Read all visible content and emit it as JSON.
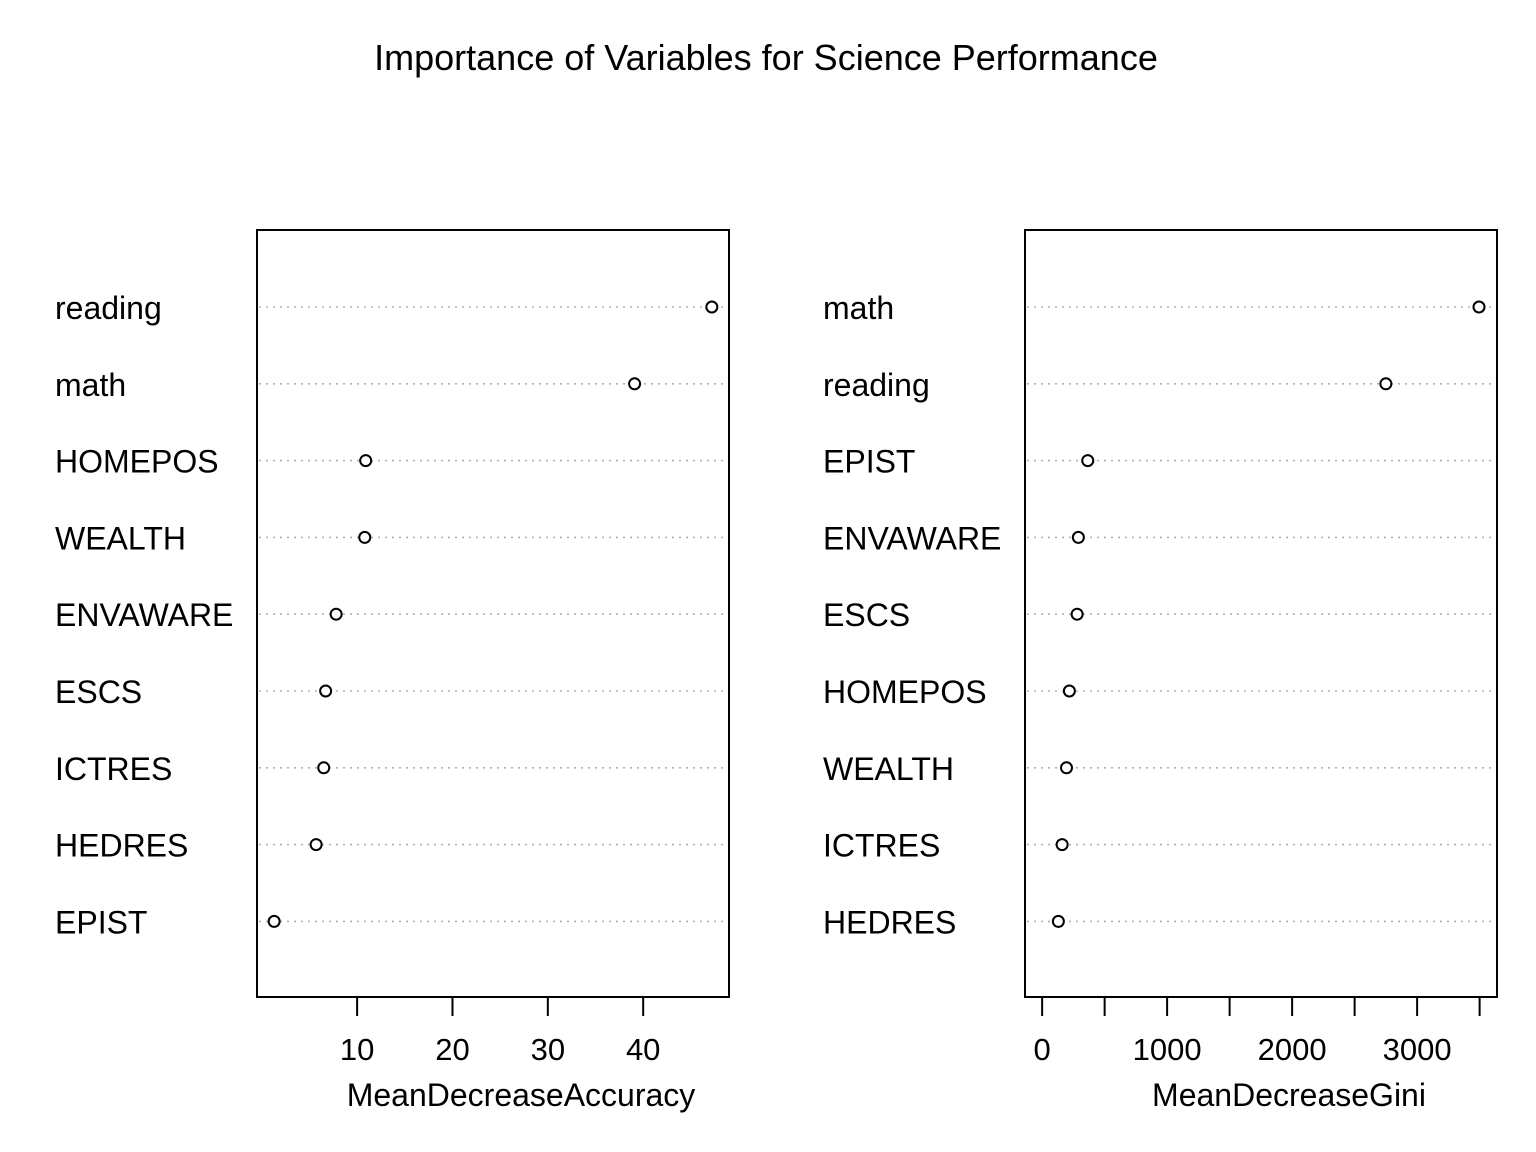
{
  "title": "Importance of Variables for Science Performance",
  "chart_data": [
    {
      "type": "scatter",
      "panel": "left",
      "variables": [
        "reading",
        "math",
        "HOMEPOS",
        "WEALTH",
        "ENVAWARE",
        "ESCS",
        "ICTRES",
        "HEDRES",
        "EPIST"
      ],
      "values": [
        47.2,
        39.1,
        10.9,
        10.8,
        7.8,
        6.7,
        6.5,
        5.7,
        1.3
      ],
      "xlabel": "MeanDecreaseAccuracy",
      "xticks": [
        10,
        20,
        30,
        40
      ],
      "xticks_labels": [
        "10",
        "20",
        "30",
        "40"
      ],
      "xlim": [
        -0.5,
        49.0
      ],
      "grid": "dotted horizontal"
    },
    {
      "type": "scatter",
      "panel": "right",
      "variables": [
        "math",
        "reading",
        "EPIST",
        "ENVAWARE",
        "ESCS",
        "HOMEPOS",
        "WEALTH",
        "ICTRES",
        "HEDRES"
      ],
      "values": [
        3495,
        2750,
        365,
        290,
        280,
        218,
        195,
        160,
        130
      ],
      "xlabel": "MeanDecreaseGini",
      "xticks": [
        0,
        500,
        1000,
        1500,
        2000,
        2500,
        3000,
        3500
      ],
      "xticks_labels": [
        "0",
        "",
        "1000",
        "",
        "2000",
        "",
        "3000",
        ""
      ],
      "xlim": [
        -137,
        3639
      ],
      "grid": "dotted horizontal"
    }
  ]
}
